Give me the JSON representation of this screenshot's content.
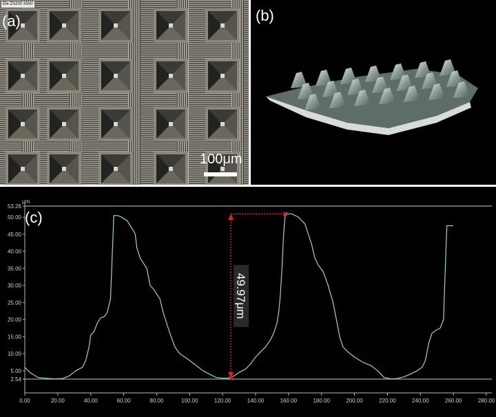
{
  "panel_a": {
    "label": "(a)",
    "info_tag": "Ele ZS200 X500",
    "scale_bar": "100μm"
  },
  "panel_b": {
    "label": "(b)"
  },
  "panel_c": {
    "label": "(c)",
    "unit": "μm",
    "measurement": "49.97μm",
    "y_ticks": [
      "53.26",
      "50.00",
      "45.00",
      "40.00",
      "35.00",
      "30.00",
      "25.00",
      "20.00",
      "15.00",
      "10.00",
      "5.00",
      "2.54"
    ],
    "x_ticks": [
      "0.00",
      "20.00",
      "40.00",
      "60.00",
      "80.00",
      "100.00",
      "120.00",
      "140.00",
      "160.00",
      "180.00",
      "200.00",
      "220.00",
      "240.00",
      "260.00",
      "280.00"
    ],
    "ref_top": 53.26,
    "ref_bottom": 2.54,
    "marker_low": {
      "x": 125,
      "y": 2.8
    },
    "marker_high": {
      "x": 158,
      "y": 51.0
    },
    "colors": {
      "profile": "#8ed8d8",
      "measure": "#e02020",
      "grid_line": "#cccccc"
    }
  },
  "chart_data": {
    "type": "line",
    "title": "",
    "xlabel": "",
    "ylabel": "μm",
    "xlim": [
      0,
      280
    ],
    "ylim": [
      2.54,
      53.26
    ],
    "series": [
      {
        "values": [
          [
            0,
            6.0
          ],
          [
            3,
            4.5
          ],
          [
            8,
            3.0
          ],
          [
            12,
            2.8
          ],
          [
            18,
            2.6
          ],
          [
            23,
            2.7
          ],
          [
            27,
            3.5
          ],
          [
            31,
            5.0
          ],
          [
            35,
            6.0
          ],
          [
            37,
            8.0
          ],
          [
            39,
            12.0
          ],
          [
            40,
            15.5
          ],
          [
            42,
            16.5
          ],
          [
            44,
            19.0
          ],
          [
            46,
            20.5
          ],
          [
            48,
            20.8
          ],
          [
            50,
            22.0
          ],
          [
            52,
            26.0
          ],
          [
            54,
            50.5
          ],
          [
            56,
            50.5
          ],
          [
            58,
            50.2
          ],
          [
            62,
            49.0
          ],
          [
            64,
            47.5
          ],
          [
            66,
            46.0
          ],
          [
            67,
            45.0
          ],
          [
            68,
            41.0
          ],
          [
            70,
            38.0
          ],
          [
            72,
            36.5
          ],
          [
            74,
            35.0
          ],
          [
            76,
            30.0
          ],
          [
            78,
            29.0
          ],
          [
            80,
            27.5
          ],
          [
            82,
            26.0
          ],
          [
            84,
            22.0
          ],
          [
            86,
            19.0
          ],
          [
            88,
            16.0
          ],
          [
            91,
            12.0
          ],
          [
            94,
            10.0
          ],
          [
            97,
            9.0
          ],
          [
            100,
            8.0
          ],
          [
            104,
            6.5
          ],
          [
            108,
            5.0
          ],
          [
            112,
            4.0
          ],
          [
            116,
            3.0
          ],
          [
            120,
            2.8
          ],
          [
            125,
            2.8
          ],
          [
            130,
            4.5
          ],
          [
            134,
            5.5
          ],
          [
            137,
            7.0
          ],
          [
            140,
            9.0
          ],
          [
            143,
            10.5
          ],
          [
            146,
            12.0
          ],
          [
            149,
            14.0
          ],
          [
            151,
            16.0
          ],
          [
            153,
            19.0
          ],
          [
            154,
            22.0
          ],
          [
            155,
            27.0
          ],
          [
            156,
            35.0
          ],
          [
            157,
            45.0
          ],
          [
            158,
            51.0
          ],
          [
            162,
            51.0
          ],
          [
            166,
            50.0
          ],
          [
            170,
            48.0
          ],
          [
            172,
            45.0
          ],
          [
            174,
            42.0
          ],
          [
            176,
            38.0
          ],
          [
            178,
            36.0
          ],
          [
            181,
            34.0
          ],
          [
            184,
            30.0
          ],
          [
            187,
            25.0
          ],
          [
            189,
            20.0
          ],
          [
            191,
            15.0
          ],
          [
            193,
            12.0
          ],
          [
            196,
            10.5
          ],
          [
            200,
            9.0
          ],
          [
            205,
            7.5
          ],
          [
            210,
            6.5
          ],
          [
            214,
            5.0
          ],
          [
            216,
            4.0
          ],
          [
            218,
            3.0
          ],
          [
            222,
            2.6
          ],
          [
            226,
            2.7
          ],
          [
            230,
            3.2
          ],
          [
            234,
            4.0
          ],
          [
            238,
            5.0
          ],
          [
            241,
            6.0
          ],
          [
            243,
            8.0
          ],
          [
            245,
            13.0
          ],
          [
            247,
            16.0
          ],
          [
            250,
            17.0
          ],
          [
            252,
            17.5
          ],
          [
            254,
            20.0
          ],
          [
            256,
            47.5
          ],
          [
            260,
            47.5
          ]
        ]
      }
    ],
    "annotations": [
      "49.97μm"
    ]
  }
}
